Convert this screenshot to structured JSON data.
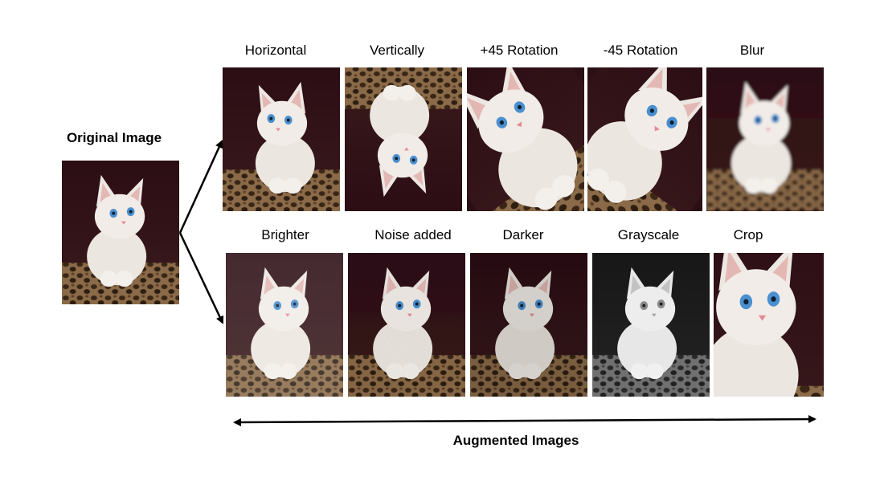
{
  "original": {
    "title": "Original Image"
  },
  "augmented_title": "Augmented Images",
  "row1": [
    {
      "label": "Horizontal"
    },
    {
      "label": "Vertically"
    },
    {
      "label": "+45 Rotation"
    },
    {
      "label": "-45 Rotation"
    },
    {
      "label": "Blur"
    }
  ],
  "row2": [
    {
      "label": "Brighter"
    },
    {
      "label": "Noise added"
    },
    {
      "label": "Darker"
    },
    {
      "label": "Grayscale"
    },
    {
      "label": "Crop"
    }
  ],
  "colors": {
    "background": "#ffffff",
    "arrow": "#000000",
    "photo_bg": "#2a0f14",
    "fur": "#efe9e4",
    "eye": "#4a8fd0"
  }
}
